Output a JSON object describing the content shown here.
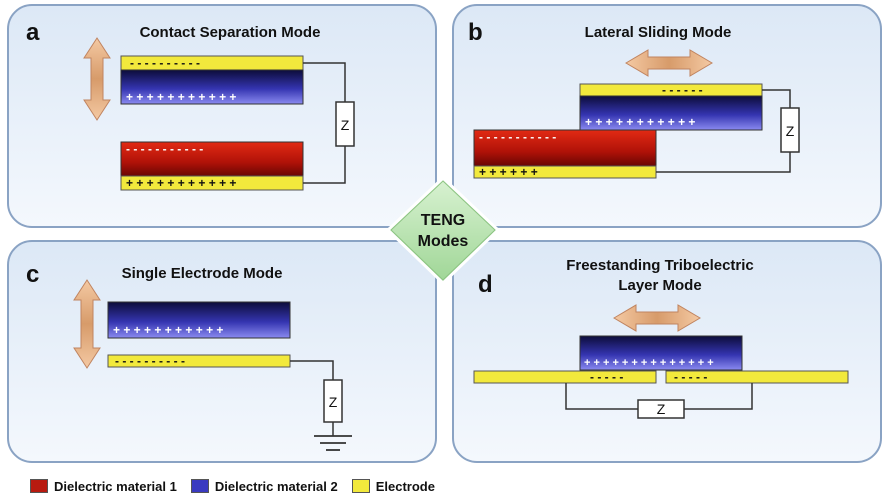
{
  "panels": {
    "a": {
      "letter": "a",
      "title": "Contact Separation Mode"
    },
    "b": {
      "letter": "b",
      "title": "Lateral Sliding Mode"
    },
    "c": {
      "letter": "c",
      "title": "Single Electrode Mode"
    },
    "d": {
      "letter": "d",
      "title_line1": "Freestanding Triboelectric",
      "title_line2": "Layer Mode"
    }
  },
  "center": {
    "line1": "TENG",
    "line2": "Modes"
  },
  "load_label": "Z",
  "charges": {
    "a_top_electrode": "- - - - - - - - - -",
    "a_top_dielectric": "+ + + + + + + + + + +",
    "a_bottom_dielectric": "- - - - - - - - - - -",
    "a_bottom_electrode": "+ + + + + + + + + + +",
    "b_top_electrode": "- - - - - -",
    "b_top_dielectric": "+ + + + + + + + + + +",
    "b_bottom_dielectric": "- - - - - - - - - - -",
    "b_bottom_electrode": "+ + + + + +",
    "c_dielectric": "+ + + + + + + + + + +",
    "c_electrode": "- - - - - - - - - -",
    "d_dielectric": "+ + + + + + + + + + + + + +",
    "d_electrode_left": "- - - - -",
    "d_electrode_right": "- - - - -"
  },
  "legend": [
    {
      "label": "Dielectric material 1",
      "color": "#b81a10"
    },
    {
      "label": "Dielectric material 2",
      "color": "#3a3ac0"
    },
    {
      "label": "Electrode",
      "color": "#f2e93c"
    }
  ],
  "colors": {
    "panel_fill": "#e6eff9",
    "panel_border": "#8aa3c4",
    "diamond_fill": "#b7e3b0",
    "electrode": "#f2e93c",
    "dielectric1": "#b81a10",
    "dielectric2": "#3a3ac0"
  }
}
